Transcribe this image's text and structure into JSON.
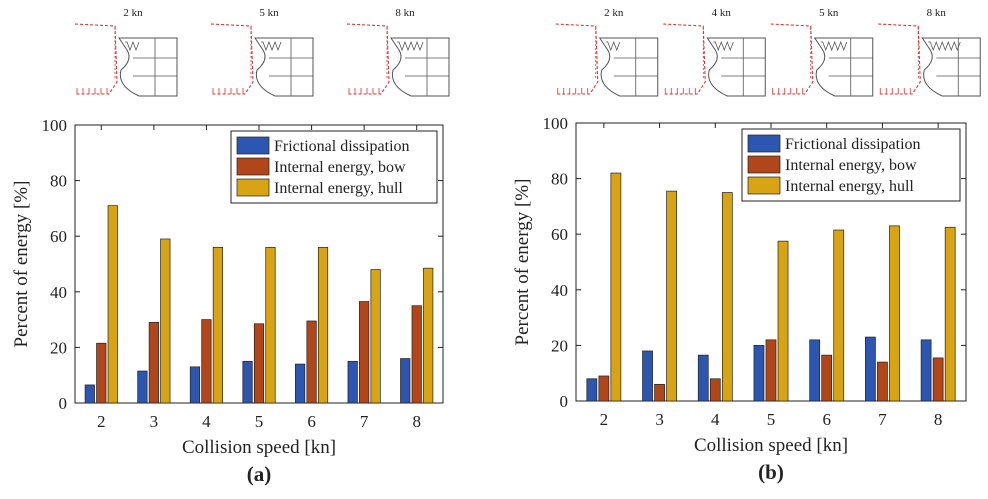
{
  "colors": {
    "frictional": "#2c56b0",
    "bow": "#b0461a",
    "hull": "#d9a414",
    "damage_red": "#e03030",
    "line_gray": "#555555"
  },
  "panels": [
    {
      "label": "(a)",
      "insets": [
        {
          "label": "2 kn",
          "damage": 1
        },
        {
          "label": "5 kn",
          "damage": 2
        },
        {
          "label": "8 kn",
          "damage": 3
        }
      ]
    },
    {
      "label": "(b)",
      "insets": [
        {
          "label": "2 kn",
          "damage": 1
        },
        {
          "label": "4 kn",
          "damage": 2
        },
        {
          "label": "5 kn",
          "damage": 3
        },
        {
          "label": "8 kn",
          "damage": 4
        }
      ]
    }
  ],
  "chart_data": [
    {
      "type": "bar",
      "xlabel": "Collision speed [kn]",
      "ylabel": "Percent of energy [%]",
      "ylim": [
        0,
        100
      ],
      "yticks": [
        0,
        20,
        40,
        60,
        80,
        100
      ],
      "categories": [
        "2",
        "3",
        "4",
        "5",
        "6",
        "7",
        "8"
      ],
      "legend_position": "top-right",
      "grid": false,
      "series": [
        {
          "name": "Frictional dissipation",
          "color": "#2c56b0",
          "values": [
            6.5,
            11.5,
            13,
            15,
            14,
            15,
            16
          ]
        },
        {
          "name": "Internal energy, bow",
          "color": "#b0461a",
          "values": [
            21.5,
            29,
            30,
            28.5,
            29.5,
            36.5,
            35
          ]
        },
        {
          "name": "Internal energy, hull",
          "color": "#d9a414",
          "values": [
            71,
            59,
            56,
            56,
            56,
            48,
            48.5
          ]
        }
      ]
    },
    {
      "type": "bar",
      "xlabel": "Collision speed [kn]",
      "ylabel": "Percent of energy [%]",
      "ylim": [
        0,
        100
      ],
      "yticks": [
        0,
        20,
        40,
        60,
        80,
        100
      ],
      "categories": [
        "2",
        "3",
        "4",
        "5",
        "6",
        "7",
        "8"
      ],
      "legend_position": "top-right",
      "grid": false,
      "series": [
        {
          "name": "Frictional dissipation",
          "color": "#2c56b0",
          "values": [
            8,
            18,
            16.5,
            20,
            22,
            23,
            22
          ]
        },
        {
          "name": "Internal energy, bow",
          "color": "#b0461a",
          "values": [
            9,
            6,
            8,
            22,
            16.5,
            14,
            15.5
          ]
        },
        {
          "name": "Internal energy, hull",
          "color": "#d9a414",
          "values": [
            82,
            75.5,
            75,
            57.5,
            61.5,
            63,
            62.5
          ]
        }
      ]
    }
  ]
}
